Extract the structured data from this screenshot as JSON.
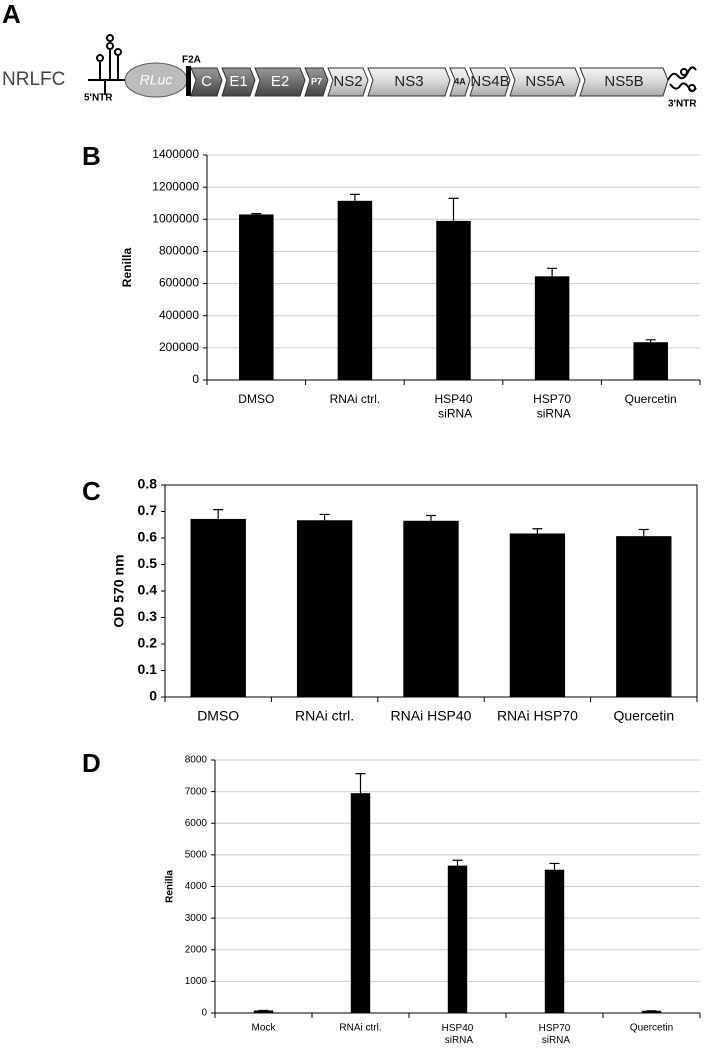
{
  "diagram": {
    "panel": "A",
    "construct": "NRLFC",
    "five_utr": "5'NTR",
    "three_utr": "3'NTR",
    "rluc": "RLuc",
    "f2a": "F2A",
    "segments": [
      "C",
      "E1",
      "E2",
      "P7",
      "NS2",
      "NS3",
      "4A",
      "NS4B",
      "NS5A",
      "NS5B"
    ]
  },
  "chart_data": [
    {
      "type": "bar",
      "panel": "B",
      "y_label": "Renilla",
      "color": "#000000",
      "grid": true,
      "categories": [
        "DMSO",
        "RNAi ctrl.",
        "HSP40\nsiRNA",
        "HSP70\nsiRNA",
        "Quercetin"
      ],
      "values": [
        1030000,
        1115000,
        990000,
        645000,
        235000
      ],
      "errors": [
        5000,
        40000,
        140000,
        50000,
        15000
      ],
      "ylim": [
        0,
        1400000
      ],
      "yticks": [
        0,
        200000,
        400000,
        600000,
        800000,
        1000000,
        1200000,
        1400000
      ]
    },
    {
      "type": "bar",
      "panel": "C",
      "y_label": "OD 570 nm",
      "color": "#000000",
      "grid": false,
      "categories": [
        "DMSO",
        "RNAi ctrl.",
        "RNAi HSP40",
        "RNAi HSP70",
        "Quercetin"
      ],
      "values": [
        0.672,
        0.667,
        0.665,
        0.617,
        0.607
      ],
      "errors": [
        0.035,
        0.022,
        0.02,
        0.018,
        0.025
      ],
      "ylim": [
        0,
        0.8
      ],
      "yticks": [
        0,
        0.1,
        0.2,
        0.3,
        0.4,
        0.5,
        0.6,
        0.7,
        0.8
      ]
    },
    {
      "type": "bar",
      "panel": "D",
      "y_label": "Renilla",
      "color": "#000000",
      "grid": true,
      "categories": [
        "Mock",
        "RNAi ctrl.",
        "HSP40\nsiRNA",
        "HSP70\nsiRNA",
        "Quercetin"
      ],
      "values": [
        80,
        6950,
        4660,
        4530,
        70
      ],
      "errors": [
        0,
        620,
        170,
        200,
        0
      ],
      "ylim": [
        0,
        8000
      ],
      "yticks": [
        0,
        1000,
        2000,
        3000,
        4000,
        5000,
        6000,
        7000,
        8000
      ]
    }
  ]
}
